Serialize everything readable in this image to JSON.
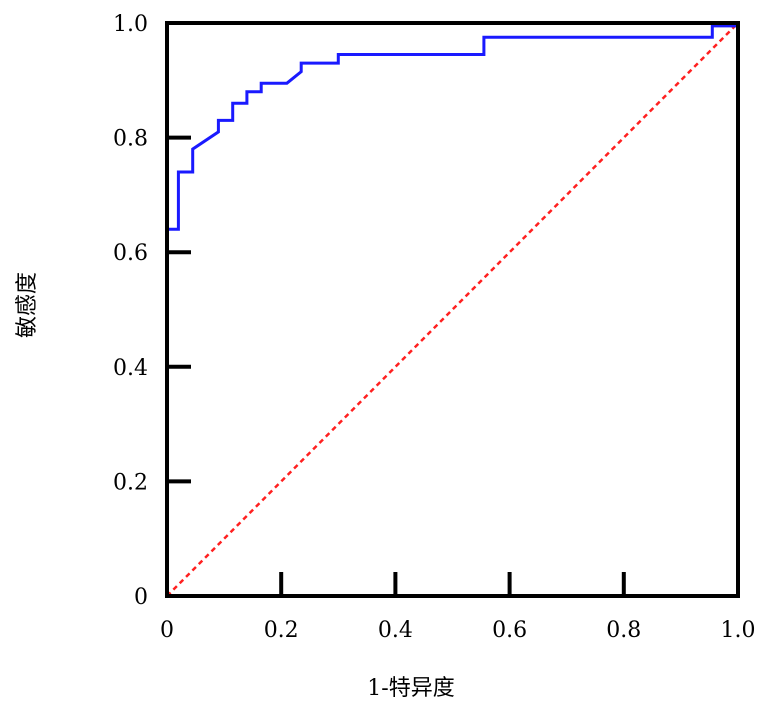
{
  "chart_data": {
    "type": "line",
    "xlabel": "1-特异度",
    "ylabel": "敏感度",
    "xlim": [
      0,
      1
    ],
    "ylim": [
      0,
      1
    ],
    "x_ticks": [
      "0",
      "0.2",
      "0.4",
      "0.6",
      "0.8",
      "1.0"
    ],
    "y_ticks": [
      "0",
      "0.2",
      "0.4",
      "0.6",
      "0.8",
      "1.0"
    ],
    "grid": false,
    "legend": "none",
    "series": [
      {
        "style": "step",
        "color": "#1a1aff",
        "x": [
          0,
          0,
          0.02,
          0.02,
          0.045,
          0.045,
          0.09,
          0.09,
          0.115,
          0.115,
          0.14,
          0.14,
          0.165,
          0.165,
          0.21,
          0.235,
          0.235,
          0.3,
          0.3,
          0.555,
          0.555,
          0.955,
          0.955,
          1.0
        ],
        "y": [
          0,
          0.64,
          0.64,
          0.74,
          0.74,
          0.78,
          0.81,
          0.83,
          0.83,
          0.86,
          0.86,
          0.88,
          0.88,
          0.895,
          0.895,
          0.915,
          0.93,
          0.93,
          0.945,
          0.945,
          0.975,
          0.975,
          0.995,
          0.995
        ]
      },
      {
        "style": "dashed",
        "color": "#ff2020",
        "x": [
          0,
          1
        ],
        "y": [
          0,
          1
        ]
      }
    ]
  }
}
